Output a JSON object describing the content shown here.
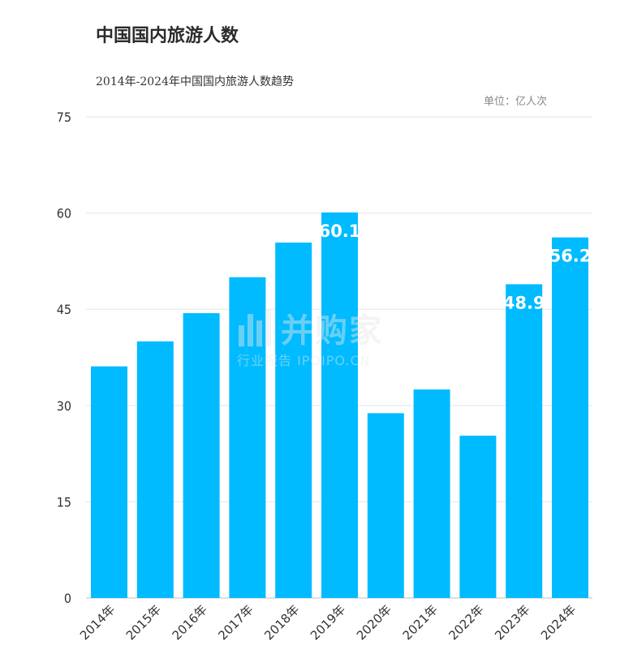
{
  "chart_data": {
    "type": "bar",
    "title": "中国国内旅游人数",
    "subtitle": "2014年-2024年中国国内旅游人数趋势",
    "unit_label": "单位：亿人次",
    "categories": [
      "2014年",
      "2015年",
      "2016年",
      "2017年",
      "2018年",
      "2019年",
      "2020年",
      "2021年",
      "2022年",
      "2023年",
      "2024年"
    ],
    "values": [
      36.1,
      40.0,
      44.4,
      50.0,
      55.4,
      60.1,
      28.8,
      32.5,
      25.3,
      48.9,
      56.2
    ],
    "data_labels": [
      "",
      "",
      "",
      "",
      "",
      "60.1",
      "",
      "",
      "",
      "48.9",
      "56.2"
    ],
    "ylim": [
      0,
      75
    ],
    "yticks": [
      "0",
      "15",
      "30",
      "45",
      "60",
      "75"
    ],
    "grid": true,
    "bar_color": "#00bbff",
    "label_color": "#ffffff"
  },
  "watermark": {
    "brand": "并购家",
    "sub": "行业报告 IPOIPO.CN"
  }
}
